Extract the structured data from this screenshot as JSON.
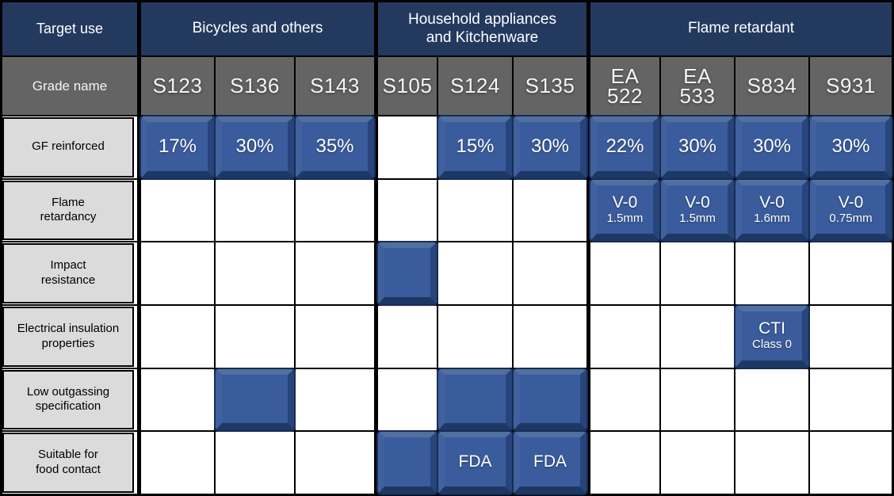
{
  "colors": {
    "header_navy": "#24395E",
    "header_gray": "#646464",
    "label_gray": "#DBDBDB",
    "badge_blue": "#3A5C9D",
    "badge_ring_dark": "#182D55",
    "grid_border": "#000000"
  },
  "chart_data": {
    "type": "table",
    "corner": {
      "target_use": "Target use",
      "grade_name": "Grade name"
    },
    "groups": [
      {
        "label": "Bicycles and others",
        "span": 3
      },
      {
        "label": "Household appliances\nand Kitchenware",
        "span": 3
      },
      {
        "label": "Flame retardant",
        "span": 4
      }
    ],
    "grades": [
      "S123",
      "S136",
      "S143",
      "S105",
      "S124",
      "S135",
      "EA\n522",
      "EA\n533",
      "S834",
      "S931"
    ],
    "rows": [
      {
        "label": "GF reinforced",
        "cells": [
          {
            "main": "17%"
          },
          {
            "main": "30%"
          },
          {
            "main": "35%"
          },
          null,
          {
            "main": "15%"
          },
          {
            "main": "30%"
          },
          {
            "main": "22%"
          },
          {
            "main": "30%"
          },
          {
            "main": "30%"
          },
          {
            "main": "30%"
          }
        ]
      },
      {
        "label": "Flame\nretardancy",
        "cells": [
          null,
          null,
          null,
          null,
          null,
          null,
          {
            "main": "V-0",
            "sub": "1.5mm"
          },
          {
            "main": "V-0",
            "sub": "1.5mm"
          },
          {
            "main": "V-0",
            "sub": "1.6mm"
          },
          {
            "main": "V-0",
            "sub": "0.75mm"
          }
        ]
      },
      {
        "label": "Impact\nresistance",
        "cells": [
          null,
          null,
          null,
          {
            "main": ""
          },
          null,
          null,
          null,
          null,
          null,
          null
        ]
      },
      {
        "label": "Electrical insulation\nproperties",
        "cells": [
          null,
          null,
          null,
          null,
          null,
          null,
          null,
          null,
          {
            "main": "CTI",
            "sub": "Class 0"
          },
          null
        ]
      },
      {
        "label": "Low outgassing\nspecification",
        "cells": [
          null,
          {
            "main": ""
          },
          null,
          null,
          {
            "main": ""
          },
          {
            "main": ""
          },
          null,
          null,
          null,
          null
        ]
      },
      {
        "label": "Suitable for\nfood contact",
        "cells": [
          null,
          null,
          null,
          {
            "main": ""
          },
          {
            "main": "FDA"
          },
          {
            "main": "FDA"
          },
          null,
          null,
          null,
          null
        ]
      }
    ]
  }
}
